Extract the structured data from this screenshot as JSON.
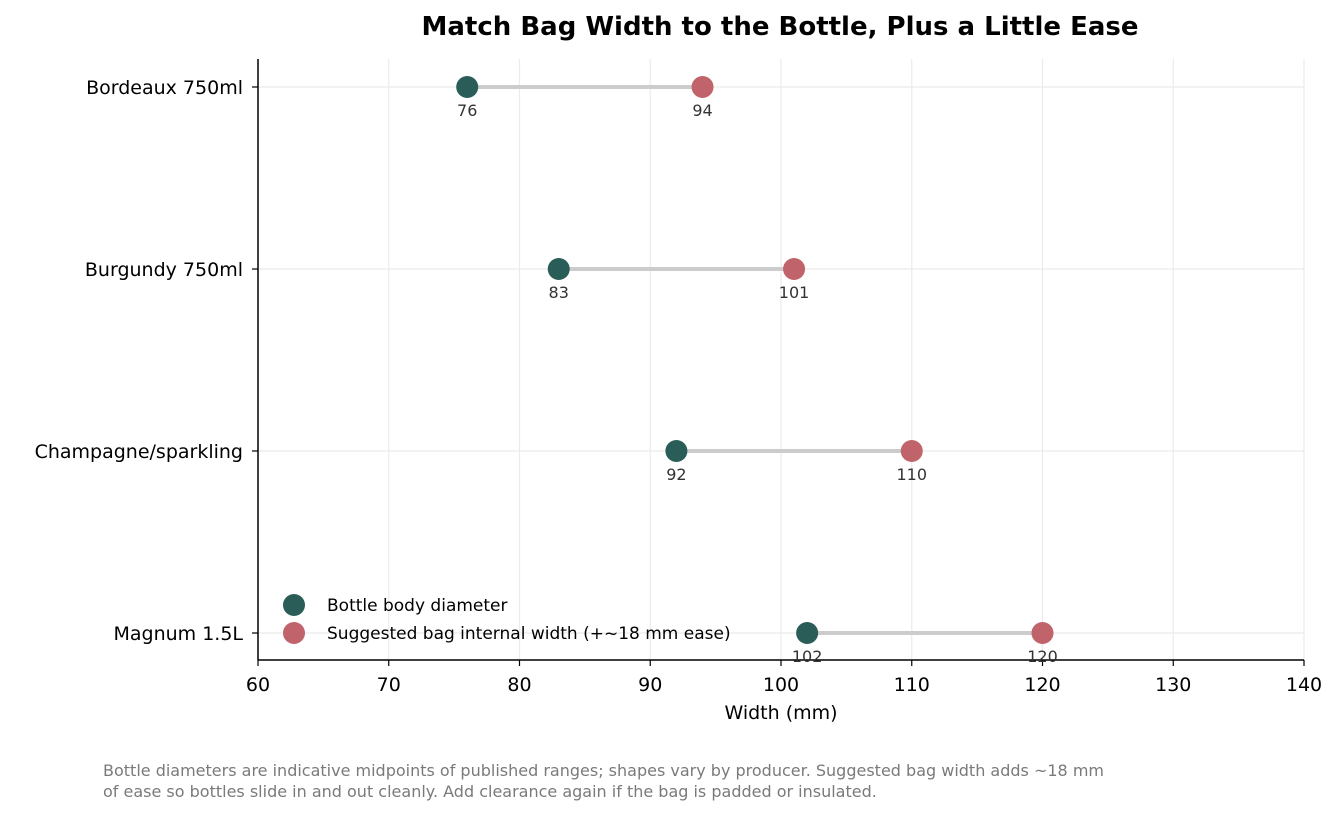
{
  "chart_data": {
    "type": "dumbbell",
    "title": "Match Bag Width to the Bottle, Plus a Little Ease",
    "xlabel": "Width (mm)",
    "ylabel": "",
    "xlim": [
      60,
      140
    ],
    "xticks": [
      60,
      70,
      80,
      90,
      100,
      110,
      120,
      130,
      140
    ],
    "categories": [
      "Bordeaux 750ml",
      "Burgundy 750ml",
      "Champagne/sparkling",
      "Magnum 1.5L"
    ],
    "series": [
      {
        "name": "Bottle body diameter",
        "values": [
          76,
          83,
          92,
          102
        ],
        "color": "#2a5d58"
      },
      {
        "name": "Suggested bag internal width (+~18 mm ease)",
        "values": [
          94,
          101,
          110,
          120
        ],
        "color": "#c1636a"
      }
    ],
    "connector_color": "#cccccc",
    "grid": true,
    "legend_position": "lower-left",
    "footnote_lines": [
      "Bottle diameters are indicative midpoints of published ranges; shapes vary by producer. Suggested bag width adds ~18 mm",
      "of ease so bottles slide in and out cleanly. Add clearance again if the bag is padded or insulated."
    ]
  }
}
